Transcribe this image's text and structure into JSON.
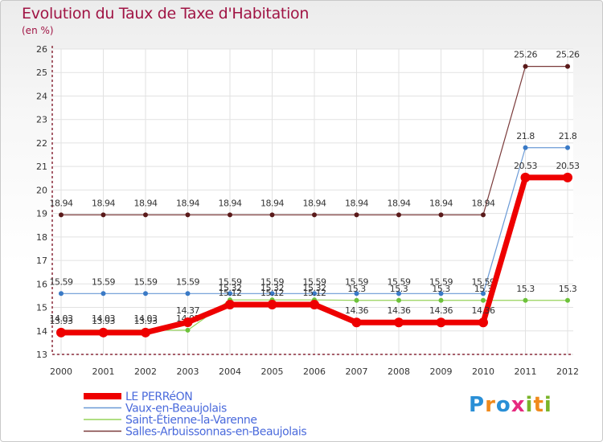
{
  "header": {
    "title": "Evolution du Taux de Taxe d'Habitation",
    "subtitle": "(en %)"
  },
  "logo": {
    "letters": [
      "P",
      "r",
      "o",
      "x",
      "i",
      "t",
      "i"
    ],
    "colors": [
      "#2a8fd6",
      "#f08a1c",
      "#2a8fd6",
      "#e62a7f",
      "#7ab42a",
      "#f08a1c",
      "#7ab42a"
    ]
  },
  "chart_data": {
    "type": "line",
    "x": [
      "2000",
      "2001",
      "2002",
      "2003",
      "2004",
      "2005",
      "2006",
      "2007",
      "2008",
      "2009",
      "2010",
      "2011",
      "2012"
    ],
    "ylim": [
      13,
      26
    ],
    "yticks": [
      "13",
      "14",
      "15",
      "16",
      "17",
      "18",
      "19",
      "20",
      "21",
      "22",
      "23",
      "24",
      "25",
      "26"
    ],
    "grid": true,
    "series": [
      {
        "name": "Salles-Arbuissonnas-en-Beaujolais",
        "color": "#7a3a3a",
        "marker": "#5a1a1a",
        "width": 1.2,
        "values": [
          18.94,
          18.94,
          18.94,
          18.94,
          18.94,
          18.94,
          18.94,
          18.94,
          18.94,
          18.94,
          18.94,
          25.26,
          25.26
        ],
        "labels": [
          "18.94",
          "18.94",
          "18.94",
          "18.94",
          "18.94",
          "18.94",
          "18.94",
          "18.94",
          "18.94",
          "18.94",
          "18.94",
          "25.26",
          "25.26"
        ]
      },
      {
        "name": "Vaux-en-Beaujolais",
        "color": "#6a9ad6",
        "marker": "#3a7ac6",
        "width": 1.2,
        "values": [
          15.59,
          15.59,
          15.59,
          15.59,
          15.59,
          15.59,
          15.59,
          15.59,
          15.59,
          15.59,
          15.59,
          21.8,
          21.8
        ],
        "labels": [
          "15.59",
          "15.59",
          "15.59",
          "15.59",
          "15.59",
          "15.59",
          "15.59",
          "15.59",
          "15.59",
          "15.59",
          "15.59",
          "21.8",
          "21.8"
        ]
      },
      {
        "name": "Saint-Étienne-la-Varenne",
        "color": "#96d45a",
        "marker": "#6cc23a",
        "width": 1.2,
        "values": [
          14.03,
          14.03,
          14.03,
          14.03,
          15.32,
          15.32,
          15.32,
          15.3,
          15.3,
          15.3,
          15.3,
          15.3,
          15.3
        ],
        "labels": [
          "14.03",
          "14.03",
          "14.03",
          "14.03",
          "15.32",
          "15.32",
          "15.32",
          "15.3",
          "15.3",
          "15.3",
          "15.3",
          "15.3",
          "15.3"
        ]
      },
      {
        "name": "LE PERRéON",
        "color": "#ee0000",
        "marker": "#ee0000",
        "width": 7,
        "values": [
          13.93,
          13.93,
          13.93,
          14.37,
          15.12,
          15.12,
          15.12,
          14.36,
          14.36,
          14.36,
          14.36,
          20.53,
          20.53
        ],
        "labels": [
          "13.93",
          "13.93",
          "13.93",
          "14.37",
          "15.12",
          "15.12",
          "15.12",
          "14.36",
          "14.36",
          "14.36",
          "14.36",
          "20.53",
          "20.53"
        ]
      }
    ],
    "legend": {
      "position": "bottom-left",
      "order": [
        "LE PERRéON",
        "Vaux-en-Beaujolais",
        "Saint-Étienne-la-Varenne",
        "Salles-Arbuissonnas-en-Beaujolais"
      ]
    }
  }
}
